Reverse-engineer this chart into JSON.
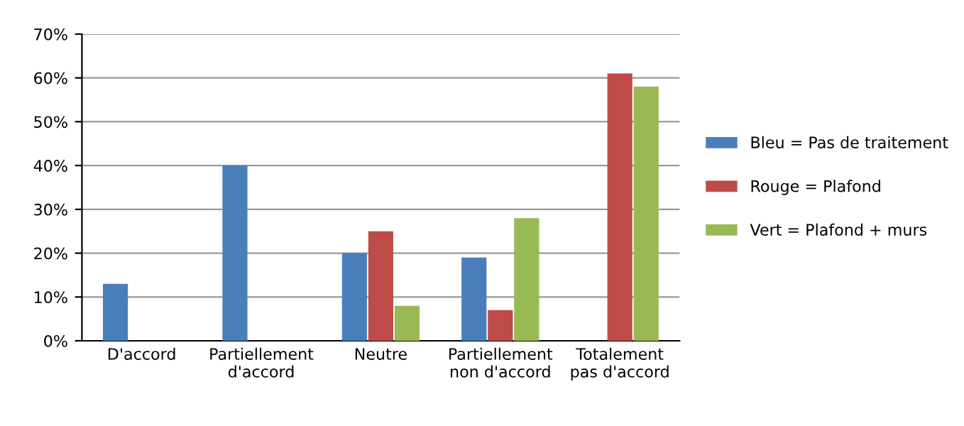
{
  "chart_data": {
    "type": "bar",
    "categories": [
      "D'accord",
      "Partiellement\nd'accord",
      "Neutre",
      "Partiellement\nnon d'accord",
      "Totalement\npas d'accord"
    ],
    "series": [
      {
        "name": "Bleu = Pas de traitement",
        "color": "#4a7ebb",
        "values": [
          13,
          40,
          20,
          19,
          null
        ]
      },
      {
        "name": "Rouge = Plafond",
        "color": "#be4b48",
        "values": [
          null,
          null,
          25,
          7,
          61
        ]
      },
      {
        "name": "Vert = Plafond + murs",
        "color": "#98b954",
        "values": [
          null,
          null,
          8,
          28,
          58
        ]
      }
    ],
    "ylim": [
      0,
      70
    ],
    "yticks": [
      {
        "value": 0,
        "label": "0%"
      },
      {
        "value": 10,
        "label": "10%"
      },
      {
        "value": 20,
        "label": "20%"
      },
      {
        "value": 30,
        "label": "30%"
      },
      {
        "value": 40,
        "label": "40%"
      },
      {
        "value": 50,
        "label": "50%"
      },
      {
        "value": 60,
        "label": "60%"
      },
      {
        "value": 70,
        "label": "70%"
      }
    ],
    "grid": "y",
    "legend": "right"
  }
}
